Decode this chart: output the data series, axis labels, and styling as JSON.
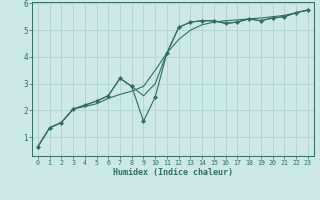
{
  "xlabel": "Humidex (Indice chaleur)",
  "bg_color": "#cce8e8",
  "line_color": "#2e6e62",
  "grid_color": "#aacece",
  "xlim": [
    -0.5,
    23.5
  ],
  "ylim": [
    0.3,
    6.05
  ],
  "xticks": [
    0,
    1,
    2,
    3,
    4,
    5,
    6,
    7,
    8,
    9,
    10,
    11,
    12,
    13,
    14,
    15,
    16,
    17,
    18,
    19,
    20,
    21,
    22,
    23
  ],
  "yticks": [
    1,
    2,
    3,
    4,
    5,
    6
  ],
  "line1_x": [
    0,
    1,
    2,
    3,
    4,
    5,
    6,
    7,
    8,
    9,
    10,
    11,
    12,
    13,
    14,
    15,
    16,
    17,
    18,
    19,
    20,
    21,
    22,
    23
  ],
  "line1_y": [
    0.65,
    1.35,
    1.55,
    2.05,
    2.15,
    2.25,
    2.45,
    2.6,
    2.72,
    2.9,
    3.5,
    4.15,
    4.65,
    5.0,
    5.2,
    5.3,
    5.35,
    5.38,
    5.42,
    5.45,
    5.5,
    5.55,
    5.65,
    5.75
  ],
  "line2_x": [
    0,
    1,
    2,
    3,
    4,
    5,
    6,
    7,
    8,
    9,
    10,
    11,
    12,
    13,
    14,
    15,
    16,
    17,
    18,
    19,
    20,
    21,
    22,
    23
  ],
  "line2_y": [
    0.65,
    1.35,
    1.55,
    2.05,
    2.2,
    2.35,
    2.55,
    3.2,
    2.9,
    1.6,
    2.5,
    4.15,
    5.1,
    5.3,
    5.35,
    5.35,
    5.25,
    5.3,
    5.42,
    5.35,
    5.45,
    5.5,
    5.65,
    5.75
  ],
  "line3_x": [
    0,
    1,
    2,
    3,
    4,
    5,
    6,
    7,
    8,
    9,
    10,
    11,
    12,
    13,
    14,
    15,
    16,
    17,
    18,
    19,
    20,
    21,
    22,
    23
  ],
  "line3_y": [
    0.65,
    1.35,
    1.55,
    2.05,
    2.2,
    2.35,
    2.55,
    3.2,
    2.9,
    2.55,
    3.0,
    4.15,
    5.1,
    5.3,
    5.35,
    5.35,
    5.25,
    5.3,
    5.42,
    5.35,
    5.45,
    5.5,
    5.65,
    5.75
  ]
}
